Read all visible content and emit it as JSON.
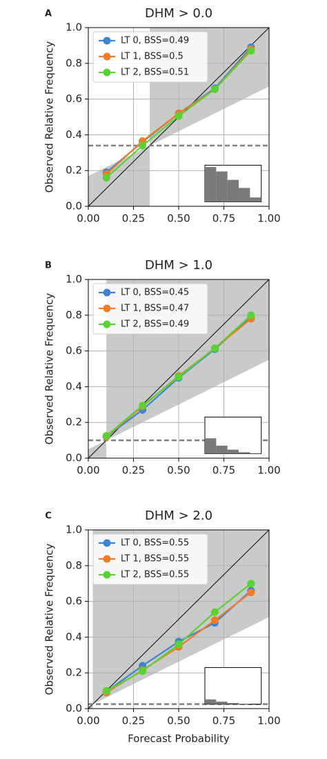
{
  "chart_data": [
    {
      "type": "line",
      "panel": "A",
      "title": "DHM > 0.0",
      "y_label": "Observed Relative Frequency",
      "x": [
        0.1,
        0.3,
        0.5,
        0.7,
        0.9
      ],
      "series": [
        {
          "name": "LT 0, BSS=0.49",
          "color": "#3a86d2",
          "values": [
            0.19,
            0.36,
            0.52,
            0.66,
            0.89
          ]
        },
        {
          "name": "LT 1, BSS=0.5",
          "color": "#f07c28",
          "values": [
            0.18,
            0.365,
            0.52,
            0.655,
            0.88
          ]
        },
        {
          "name": "LT 2, BSS=0.51",
          "color": "#5ad235",
          "values": [
            0.16,
            0.34,
            0.505,
            0.655,
            0.87
          ]
        }
      ],
      "climatology": 0.34,
      "histogram": [
        0.95,
        0.83,
        0.6,
        0.38,
        0.12
      ],
      "xlim": [
        0,
        1
      ],
      "ylim": [
        0,
        1
      ],
      "xticks": [
        {
          "value": 0,
          "label": "0.00"
        },
        {
          "value": 0.25,
          "label": "0.25"
        },
        {
          "value": 0.5,
          "label": "0.50"
        },
        {
          "value": 0.75,
          "label": "0.75"
        },
        {
          "value": 1,
          "label": "1.00"
        }
      ],
      "yticks": [
        {
          "value": 0,
          "label": "0.0"
        },
        {
          "value": 0.2,
          "label": "0.2"
        },
        {
          "value": 0.4,
          "label": "0.4"
        },
        {
          "value": 0.6,
          "label": "0.6"
        },
        {
          "value": 0.8,
          "label": "0.8"
        },
        {
          "value": 1,
          "label": "1.0"
        }
      ],
      "grid": true,
      "legend": "upper left"
    },
    {
      "type": "line",
      "panel": "B",
      "title": "DHM > 1.0",
      "y_label": "Observed Relative Frequency",
      "x": [
        0.1,
        0.3,
        0.5,
        0.7,
        0.9
      ],
      "series": [
        {
          "name": "LT 0, BSS=0.45",
          "color": "#3a86d2",
          "values": [
            0.12,
            0.27,
            0.45,
            0.61,
            0.79
          ]
        },
        {
          "name": "LT 1, BSS=0.47",
          "color": "#f07c28",
          "values": [
            0.12,
            0.29,
            0.46,
            0.615,
            0.78
          ]
        },
        {
          "name": "LT 2, BSS=0.49",
          "color": "#5ad235",
          "values": [
            0.125,
            0.295,
            0.455,
            0.615,
            0.8
          ]
        }
      ],
      "climatology": 0.1,
      "histogram": [
        0.42,
        0.22,
        0.11,
        0.04,
        0.01
      ],
      "xlim": [
        0,
        1
      ],
      "ylim": [
        0,
        1
      ],
      "xticks": [
        {
          "value": 0,
          "label": "0.00"
        },
        {
          "value": 0.25,
          "label": "0.25"
        },
        {
          "value": 0.5,
          "label": "0.50"
        },
        {
          "value": 0.75,
          "label": "0.75"
        },
        {
          "value": 1,
          "label": "1.00"
        }
      ],
      "yticks": [
        {
          "value": 0,
          "label": "0.0"
        },
        {
          "value": 0.2,
          "label": "0.2"
        },
        {
          "value": 0.4,
          "label": "0.4"
        },
        {
          "value": 0.6,
          "label": "0.6"
        },
        {
          "value": 0.8,
          "label": "0.8"
        },
        {
          "value": 1,
          "label": "1.0"
        }
      ],
      "grid": true,
      "legend": "upper left"
    },
    {
      "type": "line",
      "panel": "C",
      "title": "DHM > 2.0",
      "y_label": "Observed Relative Frequency",
      "x_label": "Forecast Probability",
      "x": [
        0.1,
        0.3,
        0.5,
        0.7,
        0.9
      ],
      "series": [
        {
          "name": "LT 0, BSS=0.55",
          "color": "#3a86d2",
          "values": [
            0.095,
            0.24,
            0.375,
            0.48,
            0.66
          ]
        },
        {
          "name": "LT 1, BSS=0.55",
          "color": "#f07c28",
          "values": [
            0.09,
            0.215,
            0.345,
            0.495,
            0.65
          ]
        },
        {
          "name": "LT 2, BSS=0.55",
          "color": "#5ad235",
          "values": [
            0.1,
            0.21,
            0.36,
            0.54,
            0.7
          ]
        }
      ],
      "climatology": 0.025,
      "histogram": [
        0.13,
        0.07,
        0.03,
        0.01,
        0.0
      ],
      "xlim": [
        0,
        1
      ],
      "ylim": [
        0,
        1
      ],
      "xticks": [
        {
          "value": 0,
          "label": "0.00"
        },
        {
          "value": 0.25,
          "label": "0.25"
        },
        {
          "value": 0.5,
          "label": "0.50"
        },
        {
          "value": 0.75,
          "label": "0.75"
        },
        {
          "value": 1,
          "label": "1.00"
        }
      ],
      "yticks": [
        {
          "value": 0,
          "label": "0.0"
        },
        {
          "value": 0.2,
          "label": "0.2"
        },
        {
          "value": 0.4,
          "label": "0.4"
        },
        {
          "value": 0.6,
          "label": "0.6"
        },
        {
          "value": 0.8,
          "label": "0.8"
        },
        {
          "value": 1,
          "label": "1.0"
        }
      ],
      "grid": true,
      "legend": "upper left"
    }
  ]
}
